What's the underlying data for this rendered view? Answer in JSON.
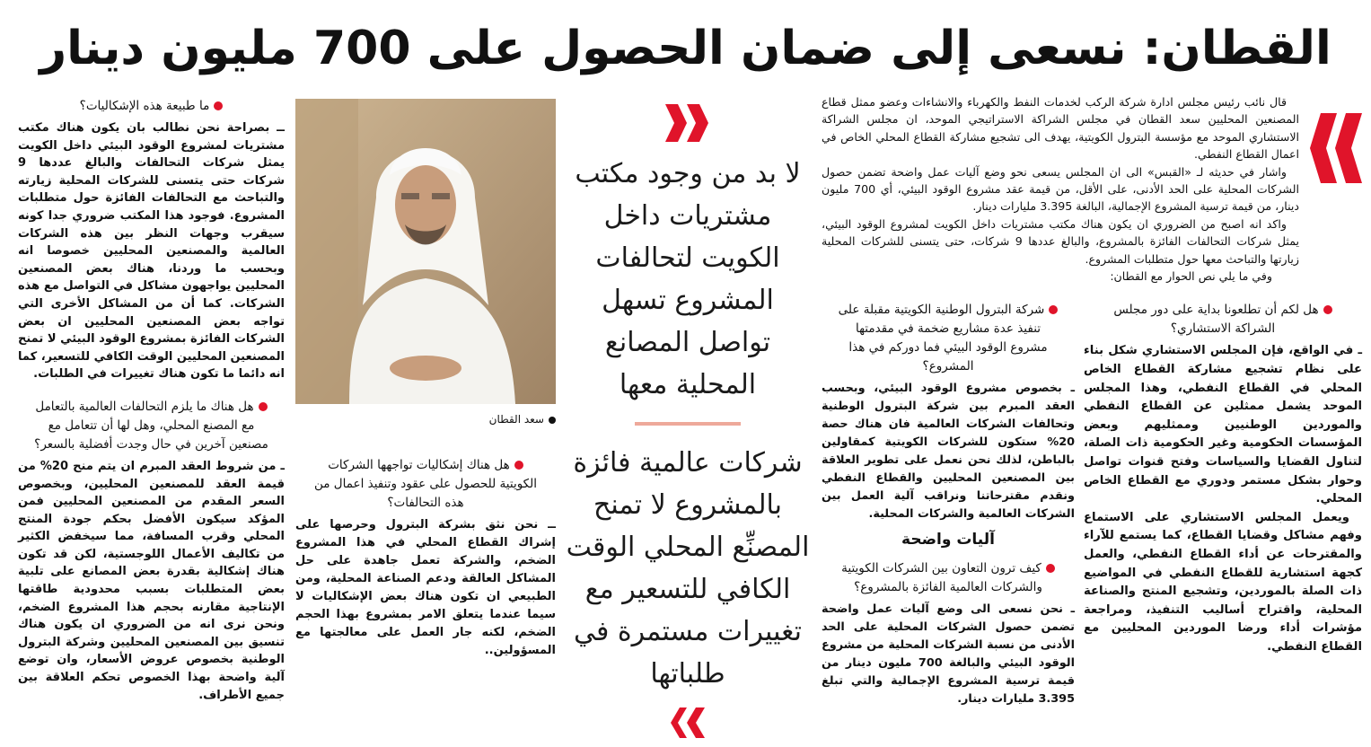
{
  "headline": "القطان: نسعى إلى ضمان الحصول على 700 مليون دينار",
  "accent_color": "#e0142a",
  "intro": [
    "قال نائب رئيس مجلس ادارة شركة الركب لخدمات النفط والكهرباء والانشاءات وعضو ممثل قطاع المصنعين المحليين سعد القطان في مجلس الشراكة الاستراتيجي الموحد، ان مجلس الشراكة الاستشاري الموحد مع مؤسسة البترول الكويتية، يهدف الى تشجيع مشاركة القطاع المحلي الخاص في اعمال القطاع النفطي.",
    "واشار في حديثه لـ «القبس» الى ان المجلس يسعى نحو وضع آليات عمل واضحة تضمن حصول الشركات المحلية على الحد الأدنى، على الأقل، من قيمة عقد مشروع الوقود البيئي، أي 700 مليون دينار، من قيمة ترسية المشروع الإجمالية، البالغة 3.395 مليارات دينار.",
    "واكد انه اصبح من الضروري ان يكون هناك مكتب مشتريات داخل الكويت لمشروع الوقود البيئي، يمثل شركات التحالفات الفائزة بالمشروع، والبالغ عددها 9 شركات، حتى يتسنى للشركات المحلية زيارتها والتباحث معها حول متطلبات المشروع.",
    "وفي ما يلي نص الحوار مع القطان:"
  ],
  "col_right": {
    "question": "هل لكم أن تطلعونا بداية على دور مجلس الشراكة الاستشاري؟",
    "answer": [
      "ـ في الواقع، فإن المجلس الاستشاري شكل بناء على نظام تشجيع مشاركة القطاع الخاص المحلي في القطاع النفطي، وهذا المجلس الموحد يشمل ممثلين عن القطاع النفطي والموردين الوطنيين وممثليهم وبعض المؤسسات الحكومية وغير الحكومية ذات الصلة، لتناول القضايا والسياسات وفتح قنوات تواصل وحوار بشكل مستمر ودوري مع القطاع الخاص المحلي.",
      "ويعمل المجلس الاستشاري على الاستماع وفهم مشاكل وقضايا القطاع، كما يستمع للآراء والمقترحات عن أداء القطاع النفطي، والعمل كجهة استشارية للقطاع النفطي في المواضيع ذات الصلة بالموردين، وتشجيع المنتج والصناعة المحلية، واقتراح أساليب التنفيذ، ومراجعة مؤشرات أداء ورضا الموردين المحليين مع القطاع النفطي."
    ]
  },
  "col_mid_right": {
    "question1": "شركة البترول الوطنية الكويتية مقبلة على تنفيذ عدة مشاريع ضخمة في مقدمتها مشروع الوقود البيئي فما دوركم في هذا المشروع؟",
    "answer1": "ـ بخصوص مشروع الوقود البيئي، وبحسب العقد المبرم بين شركة البترول الوطنية وتحالفات الشركات العالمية فان هناك حصة 20% ستكون للشركات الكويتية كمقاولين بالباطن، لذلك نحن نعمل على تطوير العلاقة بين المصنعين المحليين والقطاع النفطي ونقدم مقترحاتنا ونراقب آلية العمل بين الشركات العالمية والشركات المحلية.",
    "subheading": "آليات واضحة",
    "question2": "كيف ترون التعاون بين الشركات الكويتية والشركات العالمية الفائزة بالمشروع؟",
    "answer2": "ـ نحن نسعى الى وضع آليات عمل واضحة تضمن حصول الشركات المحلية على الحد الأدنى من نسبة الشركات المحلية من مشروع الوقود البيئي والبالغة 700 مليون دينار من قيمة ترسية المشروع الإجمالية والتي تبلغ 3.395 مليارات دينار."
  },
  "pull_quotes": [
    "لا بد من وجود مكتب مشتريات داخل الكويت لتحالفات المشروع تسهل تواصل المصانع المحلية معها",
    "شركات عالمية فائزة بالمشروع لا تمنح المصنِّع المحلي الوقت الكافي للتسعير مع تغييرات مستمرة في طلباتها"
  ],
  "photo": {
    "caption": "سعد القطان"
  },
  "col_photo": {
    "question": "هل هناك إشكاليات تواجهها الشركات الكويتية للحصول على عقود وتنفيذ اعمال من هذه التحالفات؟",
    "answer": "ــ نحن نثق بشركة البترول وحرصها على إشراك القطاع المحلي في هذا المشروع الضخم، والشركة تعمل جاهدة على حل المشاكل العالقة ودعم الصناعة المحلية، ومن الطبيعي ان تكون هناك بعض الإشكاليات لا سيما عندما يتعلق الامر بمشروع بهذا الحجم الضخم، لكنه جار العمل على معالجتها مع المسؤولين.."
  },
  "col_left": {
    "question1": "ما طبيعة هذه الإشكاليات؟",
    "answer1": "ــ بصراحة نحن نطالب بان يكون هناك مكتب مشتريات لمشروع الوقود البيئي داخل الكويت يمثل شركات التحالفات والبالغ عددها 9 شركات حتى يتسنى للشركات المحلية زيارته والتباحث مع التحالفات الفائزة حول متطلبات المشروع. فوجود هذا المكتب ضروري جدا كونه سيقرب وجهات النظر بين هذه الشركات العالمية والمصنعين المحليين خصوصا انه وبحسب ما وردنا، هناك بعض المصنعين المحليين يواجهون مشاكل في التواصل مع هذه الشركات. كما أن من المشاكل الأخرى التي تواجه بعض المصنعين المحليين ان بعض الشركات الفائزة بمشروع الوقود البيئي لا تمنح المصنعين المحليين الوقت الكافي للتسعير، كما انه دائما ما تكون هناك تغييرات في الطلبات.",
    "question2": "هل هناك ما يلزم التحالفات العالمية بالتعامل مع المصنع المحلي، وهل لها أن تتعامل مع مصنعين آخرين في حال وجدت أفضلية بالسعر؟",
    "answer2": "ـ من شروط العقد المبرم ان يتم منح 20% من قيمة العقد للمصنعين المحليين، وبخصوص السعر المقدم من المصنعين المحليين فمن المؤكد سيكون الأفضل بحكم جودة المنتج المحلي وقرب المسافة، مما سيخفض الكثير من تكاليف الأعمال اللوجستية، لكن قد تكون هناك إشكالية بقدرة بعض المصانع على تلبية بعض المتطلبات بسبب محدودية طاقتها الإنتاجية مقارنه بحجم هذا المشروع الضخم، ونحن نرى انه من الضروري ان يكون هناك تنسيق بين المصنعين المحليين وشركة البترول الوطنية بخصوص عروض الأسعار، وان توضع آلية واضحة بهذا الخصوص تحكم العلاقة بين جميع الأطراف."
  }
}
